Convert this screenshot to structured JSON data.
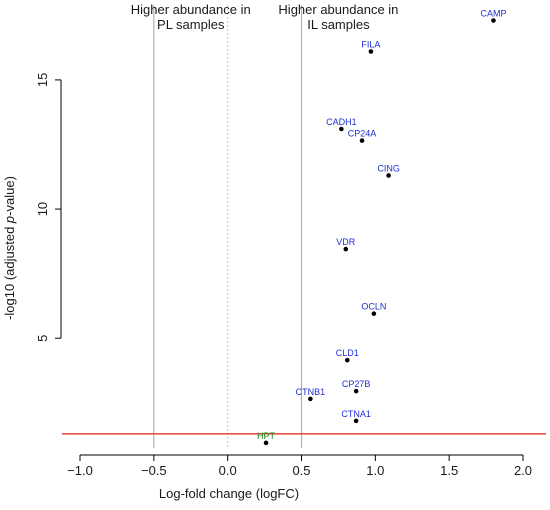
{
  "chart_data": {
    "type": "scatter",
    "title": "",
    "xlabel": "Log-fold change (logFC)",
    "ylabel_prefix": "-log10 (adjusted ",
    "ylabel_italic": "p",
    "ylabel_suffix": "-value)",
    "xlim": [
      -1.0,
      2.0
    ],
    "ylim": [
      0.75,
      17.9
    ],
    "xticks": [
      {
        "value": -1.0,
        "label": "−1.0"
      },
      {
        "value": -0.5,
        "label": "−0.5"
      },
      {
        "value": 0.0,
        "label": "0.0"
      },
      {
        "value": 0.5,
        "label": "0.5"
      },
      {
        "value": 1.0,
        "label": "1.0"
      },
      {
        "value": 1.5,
        "label": "1.5"
      },
      {
        "value": 2.0,
        "label": "2.0"
      }
    ],
    "yticks": [
      {
        "value": 5,
        "label": "5"
      },
      {
        "value": 10,
        "label": "10"
      },
      {
        "value": 15,
        "label": "15"
      }
    ],
    "vertical_lines": [
      {
        "x": -0.5,
        "color": "#b0b0b0",
        "style": "solid"
      },
      {
        "x": 0.0,
        "color": "#b0b0b0",
        "style": "dotted"
      },
      {
        "x": 0.5,
        "color": "#b0b0b0",
        "style": "solid"
      }
    ],
    "threshold_line": {
      "y": 1.3,
      "color": "#e8322c"
    },
    "regions": [
      {
        "lines": [
          "Higher abundance in",
          "PL samples"
        ],
        "x": -0.25
      },
      {
        "lines": [
          "Higher abundance in",
          "IL samples"
        ],
        "x": 0.75
      }
    ],
    "points": [
      {
        "label": "CAMP",
        "x": 1.8,
        "y": 17.3,
        "color": "#1f2fd6"
      },
      {
        "label": "FILA",
        "x": 0.97,
        "y": 16.1,
        "color": "#1f2fd6"
      },
      {
        "label": "CADH1",
        "x": 0.77,
        "y": 13.1,
        "color": "#1f2fd6"
      },
      {
        "label": "CP24A",
        "x": 0.91,
        "y": 12.65,
        "color": "#1f2fd6"
      },
      {
        "label": "CING",
        "x": 1.09,
        "y": 11.3,
        "color": "#1f2fd6"
      },
      {
        "label": "VDR",
        "x": 0.8,
        "y": 8.45,
        "color": "#1f2fd6"
      },
      {
        "label": "OCLN",
        "x": 0.99,
        "y": 5.95,
        "color": "#1f2fd6"
      },
      {
        "label": "CLD1",
        "x": 0.81,
        "y": 4.15,
        "color": "#1f2fd6"
      },
      {
        "label": "CP27B",
        "x": 0.87,
        "y": 2.95,
        "color": "#1f2fd6"
      },
      {
        "label": "CTNB1",
        "x": 0.56,
        "y": 2.65,
        "color": "#1f2fd6"
      },
      {
        "label": "CTNA1",
        "x": 0.87,
        "y": 1.8,
        "color": "#1f2fd6"
      },
      {
        "label": "HPT",
        "x": 0.26,
        "y": 0.95,
        "color": "#1a8a1a"
      }
    ]
  }
}
